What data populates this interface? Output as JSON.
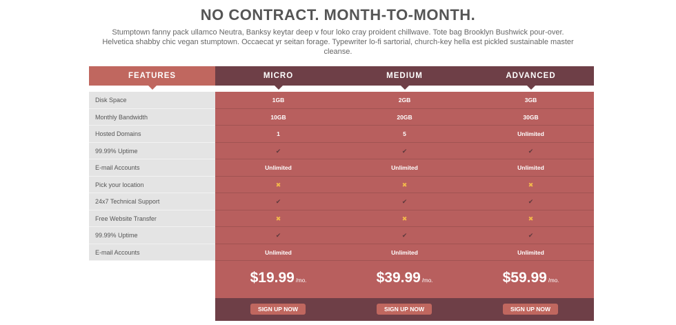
{
  "heading": "NO CONTRACT. MONTH-TO-MONTH.",
  "subheading": "Stumptown fanny pack ullamco Neutra, Banksy keytar deep v four loko cray proident chillwave. Tote bag Brooklyn Bushwick pour-over. Helvetica shabby chic vegan stumptown. Occaecat yr seitan forage. Typewriter lo-fi sartorial, church-key hella est pickled sustainable master cleanse.",
  "colors": {
    "accent": "#c0675f",
    "dark": "#6e3f47",
    "body": "#b85f5e",
    "feature_bg": "#e4e4e4",
    "check": "#5f3a3d",
    "cross": "#f2b84b"
  },
  "features_header": "FEATURES",
  "features": [
    "Disk Space",
    "Monthly Bandwidth",
    "Hosted Domains",
    "99.99% Uptime",
    "E-mail Accounts",
    "Pick your location",
    "24x7 Technical Support",
    "Free Website Transfer",
    "99.99% Uptime",
    "E-mail Accounts"
  ],
  "plans": [
    {
      "name": "MICRO",
      "values": [
        "1GB",
        "10GB",
        "1",
        "check-icon",
        "Unlimited",
        "cross-icon",
        "check-icon",
        "cross-icon",
        "check-icon",
        "Unlimited"
      ],
      "price": "$19.99",
      "per": "/mo.",
      "button": "SIGN UP NOW"
    },
    {
      "name": "MEDIUM",
      "values": [
        "2GB",
        "20GB",
        "5",
        "check-icon",
        "Unlimited",
        "cross-icon",
        "check-icon",
        "cross-icon",
        "check-icon",
        "Unlimited"
      ],
      "price": "$39.99",
      "per": "/mo.",
      "button": "SIGN UP NOW"
    },
    {
      "name": "ADVANCED",
      "values": [
        "3GB",
        "30GB",
        "Unlimited",
        "check-icon",
        "Unlimited",
        "cross-icon",
        "check-icon",
        "cross-icon",
        "check-icon",
        "Unlimited"
      ],
      "price": "$59.99",
      "per": "/mo.",
      "button": "SIGN UP NOW"
    }
  ]
}
